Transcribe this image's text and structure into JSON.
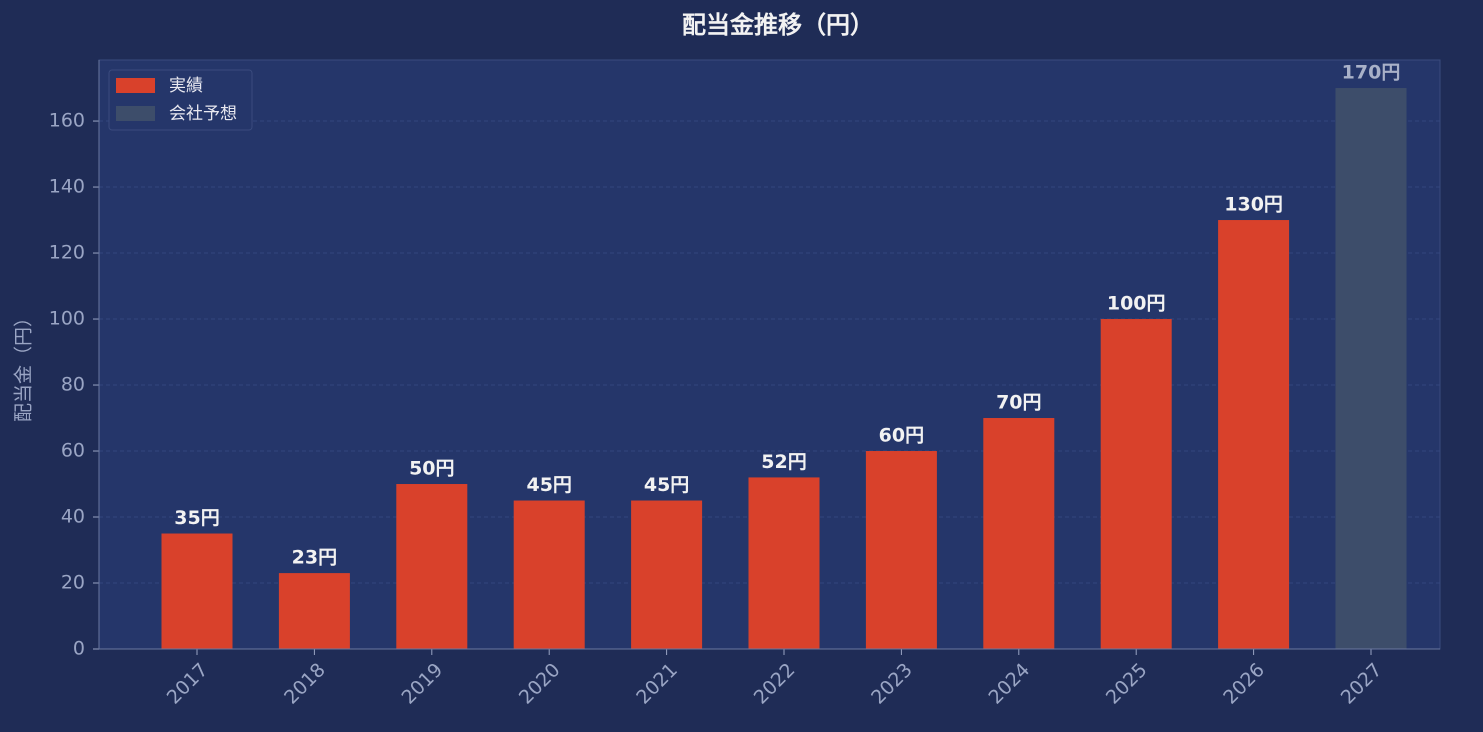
{
  "chart_data": {
    "type": "bar",
    "title": "配当金推移（円）",
    "ylabel": "配当金（円）",
    "categories": [
      "2017",
      "2018",
      "2019",
      "2020",
      "2021",
      "2022",
      "2023",
      "2024",
      "2025",
      "2026",
      "2027"
    ],
    "series": [
      {
        "name": "実績",
        "color": "#d9412b",
        "values": [
          35,
          23,
          50,
          45,
          45,
          52,
          60,
          70,
          100,
          130,
          null
        ],
        "value_labels": [
          "35円",
          "23円",
          "50円",
          "45円",
          "45円",
          "52円",
          "60円",
          "70円",
          "100円",
          "130円",
          null
        ]
      },
      {
        "name": "会社予想",
        "color": "#3d4d6a",
        "values": [
          null,
          null,
          null,
          null,
          null,
          null,
          null,
          null,
          null,
          null,
          170
        ],
        "value_labels": [
          null,
          null,
          null,
          null,
          null,
          null,
          null,
          null,
          null,
          null,
          "170円"
        ]
      }
    ],
    "ylim": [
      0,
      178.5
    ],
    "yticks": [
      0,
      20,
      40,
      60,
      80,
      100,
      120,
      140,
      160
    ],
    "grid": true,
    "legend": "upper-left"
  }
}
